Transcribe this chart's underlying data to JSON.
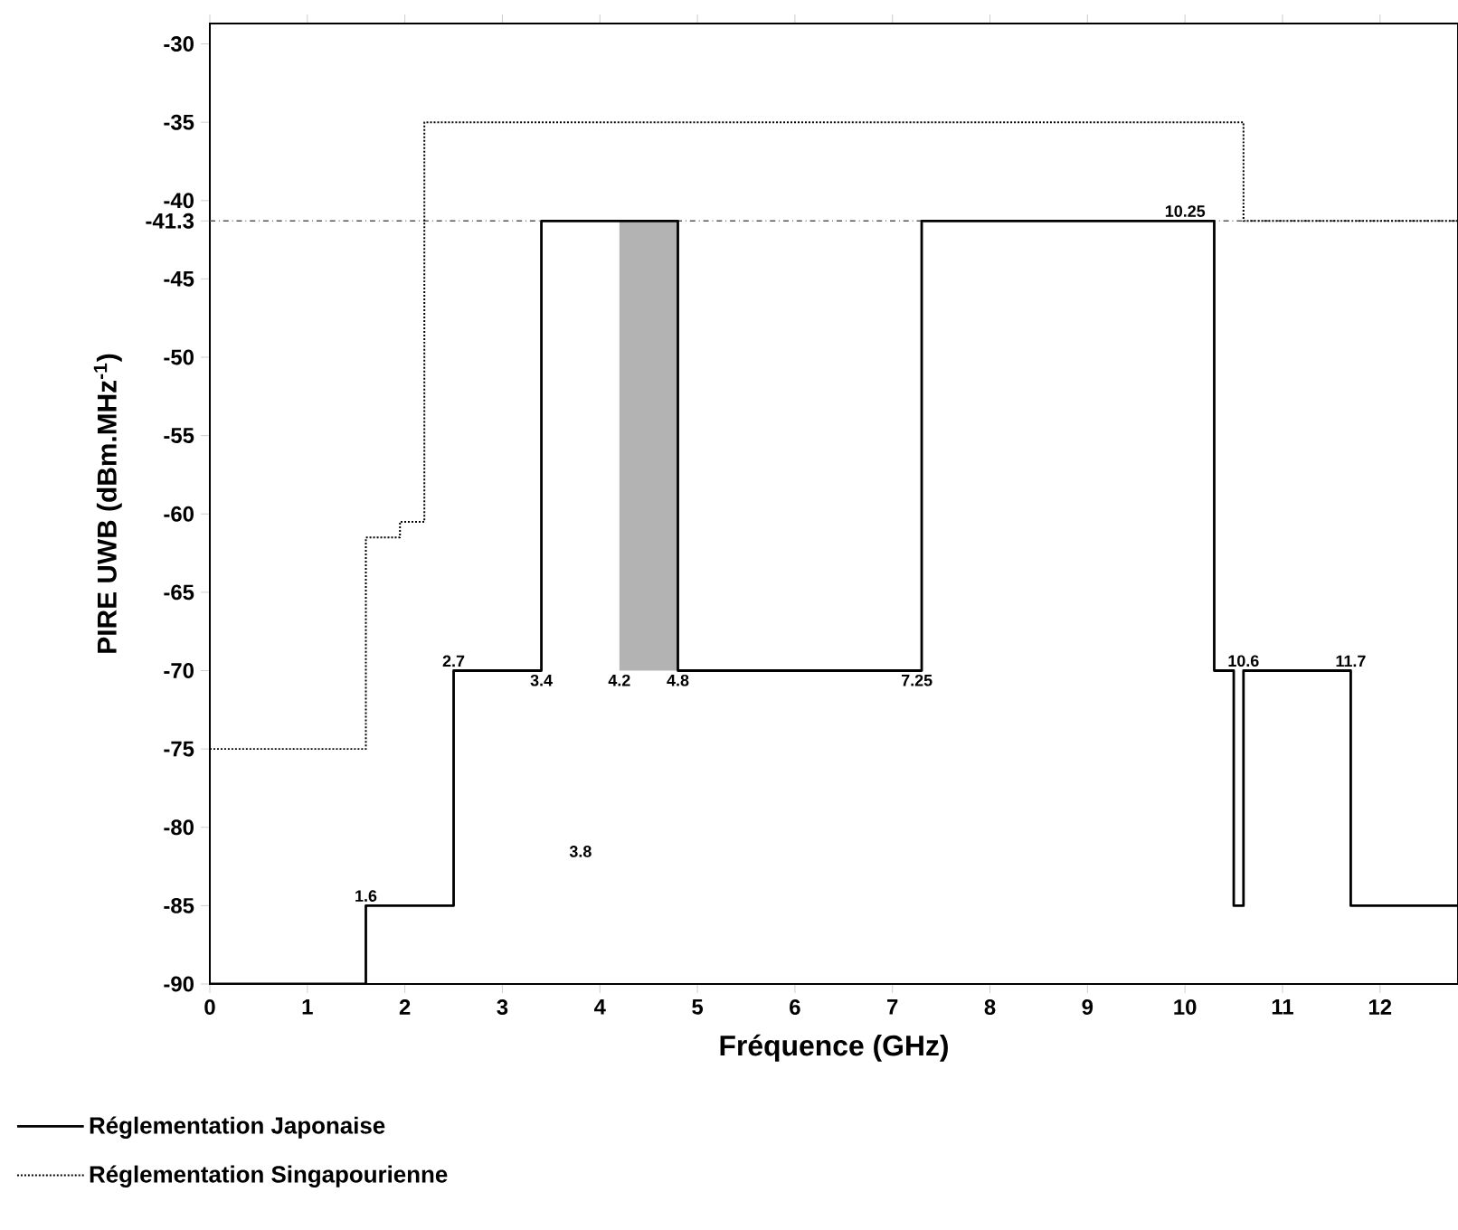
{
  "chart_data": {
    "type": "line",
    "xlabel": "Fréquence (GHz)",
    "ylabel": "PIRE UWB (dBm.MHz$^{-1}$)",
    "xlim": [
      0,
      12.8
    ],
    "ylim": [
      -90,
      -28.7
    ],
    "xticks": [
      0,
      1,
      2,
      3,
      4,
      5,
      6,
      7,
      8,
      9,
      10,
      11,
      12
    ],
    "yticks": [
      -90,
      -85,
      -80,
      -75,
      -70,
      -65,
      -60,
      -55,
      -50,
      -45,
      -41.3,
      -40,
      -35,
      -30
    ],
    "legend": "bottom",
    "series": [
      {
        "name": "Réglementation Japonaise",
        "color": "#000000",
        "line_style": "solid",
        "x": [
          0,
          1.6,
          1.6,
          2.5,
          2.5,
          3.4,
          3.4,
          4.8,
          4.8,
          7.3,
          7.3,
          10.3,
          10.3,
          10.5,
          10.5,
          10.6,
          10.6,
          11.7,
          11.7,
          12.8
        ],
        "values": [
          -90,
          -90,
          -85,
          -85,
          -70,
          -70,
          -41.3,
          -41.3,
          -70,
          -70,
          -41.3,
          -41.3,
          -70,
          -70,
          -85,
          -85,
          -70,
          -70,
          -85,
          -85
        ]
      },
      {
        "name": "Réglementation Singapourienne",
        "color": "#000000",
        "line_style": "dotted",
        "x": [
          0,
          1.6,
          1.6,
          1.95,
          1.95,
          2.2,
          2.2,
          10.6,
          10.6,
          12.8
        ],
        "values": [
          -75,
          -75,
          -61.5,
          -61.5,
          -60.5,
          -60.5,
          -35,
          -35,
          -41.3,
          -41.3
        ]
      },
      {
        "type": "area",
        "color": "#b3b3b3",
        "x": [
          4.2,
          4.2,
          4.8,
          4.8
        ],
        "values": [
          -70,
          -41.3,
          -41.3,
          -70
        ]
      }
    ],
    "ref_lines": [
      {
        "axis": "y",
        "value": -41.3,
        "color": "#555555",
        "line_style": "dashdot"
      }
    ],
    "annotations": [
      {
        "text": "1.6",
        "x": 1.6,
        "y": -85
      },
      {
        "text": "2.7",
        "x": 2.5,
        "y": -70
      },
      {
        "text": "3.4",
        "x": 3.4,
        "y": -70
      },
      {
        "text": "4.2",
        "x": 4.2,
        "y": -70
      },
      {
        "text": "4.8",
        "x": 4.8,
        "y": -70
      },
      {
        "text": "7.25",
        "x": 7.25,
        "y": -70
      },
      {
        "text": "10.25",
        "x": 10.25,
        "y": -41.3
      },
      {
        "text": "10.6",
        "x": 10.6,
        "y": -70
      },
      {
        "text": "11.7",
        "x": 11.7,
        "y": -70
      },
      "3.8"
    ]
  }
}
